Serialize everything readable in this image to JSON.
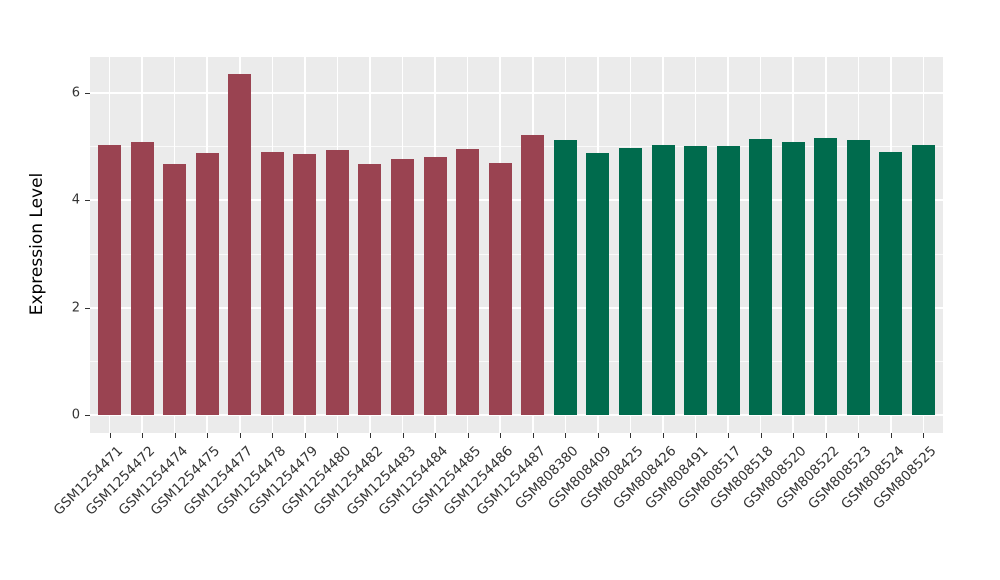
{
  "chart_data": {
    "type": "bar",
    "title": "",
    "xlabel": "",
    "ylabel": "Expression Level",
    "ylim": [
      -0.33,
      6.67
    ],
    "yticks": [
      0,
      2,
      4,
      6
    ],
    "yticks_minor": [
      1,
      3,
      5
    ],
    "grid": "on",
    "legend_position": "none",
    "panel_background": "#EBEBEB",
    "gridline_color": "#FFFFFF",
    "categories": [
      "GSM1254471",
      "GSM1254472",
      "GSM1254474",
      "GSM1254475",
      "GSM1254477",
      "GSM1254478",
      "GSM1254479",
      "GSM1254480",
      "GSM1254482",
      "GSM1254483",
      "GSM1254484",
      "GSM1254485",
      "GSM1254486",
      "GSM1254487",
      "GSM808380",
      "GSM808409",
      "GSM808425",
      "GSM808426",
      "GSM808491",
      "GSM808517",
      "GSM808518",
      "GSM808520",
      "GSM808522",
      "GSM808523",
      "GSM808524",
      "GSM808525"
    ],
    "values": [
      5.03,
      5.08,
      4.67,
      4.89,
      6.35,
      4.91,
      4.87,
      4.94,
      4.68,
      4.77,
      4.81,
      4.95,
      4.7,
      5.22,
      5.13,
      4.89,
      4.98,
      5.03,
      5.01,
      5.01,
      5.14,
      5.09,
      5.17,
      5.12,
      4.91,
      5.03
    ],
    "groups": [
      "A",
      "A",
      "A",
      "A",
      "A",
      "A",
      "A",
      "A",
      "A",
      "A",
      "A",
      "A",
      "A",
      "A",
      "B",
      "B",
      "B",
      "B",
      "B",
      "B",
      "B",
      "B",
      "B",
      "B",
      "B",
      "B"
    ],
    "group_colors": {
      "A": "#9A4351",
      "B": "#006B4D"
    },
    "axis_text_color": "#333333"
  }
}
